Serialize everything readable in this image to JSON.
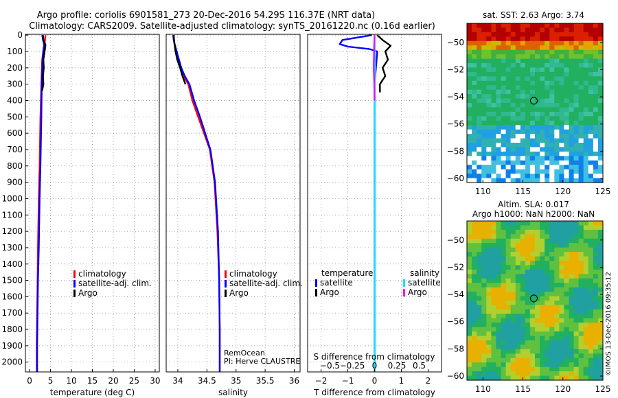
{
  "header": {
    "line1": "Argo profile: coriolis 6901581_273 20-Dec-2016 54.29S 116.37E (NRT data)",
    "line2": "Climatology: CARS2009. Satellite-adjusted climatology: synTS_20161220.nc (0.16d earlier)"
  },
  "credits": {
    "remocean": "RemOcean",
    "pi": "PI: Herve CLAUSTRE",
    "imos": "©IMOS 13-Dec-2016 09:35:12"
  },
  "colors": {
    "climatology": "#ff0000",
    "satellite": "#0000ff",
    "argo": "#000000",
    "sal_satellite": "#00e5ff",
    "sal_argo": "#ff00ff"
  },
  "chart_data": [
    {
      "type": "line",
      "id": "temperature",
      "xlabel": "temperature (deg C)",
      "xlim": [
        -1,
        31
      ],
      "xticks": [
        0,
        5,
        10,
        15,
        20,
        25,
        30
      ],
      "ylim": [
        2060,
        -5
      ],
      "yticks": [
        0,
        100,
        200,
        300,
        400,
        500,
        600,
        700,
        800,
        900,
        1000,
        1100,
        1200,
        1300,
        1400,
        1500,
        1600,
        1700,
        1800,
        1900,
        2000
      ],
      "legend": [
        "climatology",
        "satellite-adj. clim.",
        "Argo"
      ],
      "series": [
        {
          "name": "climatology",
          "color": "#ff0000",
          "x": [
            3.8,
            3.6,
            3.4,
            3.0,
            2.8,
            2.6,
            2.4,
            2.2,
            2.0,
            1.9,
            1.8,
            1.7,
            1.7
          ],
          "y": [
            0,
            50,
            80,
            150,
            300,
            500,
            800,
            1000,
            1300,
            1500,
            1700,
            1900,
            2060
          ]
        },
        {
          "name": "satellite-adj. clim.",
          "color": "#0000ff",
          "x": [
            3.0,
            3.2,
            3.5,
            3.3,
            3.1,
            2.9,
            2.8,
            2.6,
            2.4,
            2.2,
            2.0,
            1.9,
            1.8,
            1.8
          ],
          "y": [
            0,
            30,
            60,
            90,
            150,
            300,
            500,
            800,
            1000,
            1300,
            1500,
            1700,
            1900,
            2060
          ]
        },
        {
          "name": "Argo",
          "color": "#000000",
          "x": [
            3.2,
            3.3,
            3.8,
            3.6,
            3.3,
            3.4,
            3.2,
            3.3,
            3.0
          ],
          "y": [
            0,
            30,
            60,
            100,
            150,
            200,
            250,
            300,
            340
          ]
        }
      ]
    },
    {
      "type": "line",
      "id": "salinity",
      "xlabel": "salinity",
      "xlim": [
        33.8,
        36.1
      ],
      "xticks": [
        34,
        34.5,
        35,
        35.5,
        36
      ],
      "ylim": [
        2060,
        -5
      ],
      "legend": [
        "climatology",
        "satellite-adj. clim.",
        "Argo"
      ],
      "series": [
        {
          "name": "climatology",
          "color": "#ff0000",
          "x": [
            33.92,
            33.93,
            33.95,
            33.97,
            34.0,
            34.05,
            34.1,
            34.18,
            34.25,
            34.35,
            34.45,
            34.55,
            34.63,
            34.68,
            34.71,
            34.72,
            34.72
          ],
          "y": [
            0,
            30,
            60,
            100,
            150,
            200,
            250,
            300,
            400,
            500,
            600,
            700,
            900,
            1200,
            1500,
            1800,
            2060
          ]
        },
        {
          "name": "satellite-adj. clim.",
          "color": "#0000ff",
          "x": [
            33.92,
            33.93,
            33.95,
            33.98,
            34.02,
            34.06,
            34.12,
            34.2,
            34.28,
            34.38,
            34.47,
            34.56,
            34.64,
            34.69,
            34.71,
            34.72,
            34.72
          ],
          "y": [
            0,
            30,
            60,
            100,
            150,
            200,
            250,
            300,
            400,
            500,
            600,
            700,
            900,
            1200,
            1500,
            1800,
            2060
          ]
        },
        {
          "name": "Argo",
          "color": "#000000",
          "x": [
            33.93,
            33.94,
            33.96,
            33.99,
            34.04,
            34.08,
            34.13
          ],
          "y": [
            0,
            50,
            100,
            150,
            200,
            250,
            300
          ]
        }
      ]
    },
    {
      "type": "line",
      "id": "difference",
      "xlabel": "T difference from climatology",
      "xlabel_top": "S difference from climatology",
      "xlim": [
        -2.5,
        2.5
      ],
      "xticks": [
        -2,
        -1,
        0,
        1,
        2
      ],
      "xticks_top": [
        -0.5,
        -0.25,
        0,
        0.25,
        0.5
      ],
      "ylim": [
        2060,
        -5
      ],
      "legend_left_title": "temperature",
      "legend_right_title": "salinity",
      "legend_left": [
        "satellite",
        "Argo"
      ],
      "legend_right": [
        "satellite",
        "Argo"
      ],
      "series": [
        {
          "name": "T satellite",
          "color": "#0000ff",
          "x": [
            -0.1,
            -1.2,
            -1.3,
            -1.0,
            -0.2,
            0.1,
            0.05,
            0.0,
            0.0,
            0.0,
            0.0
          ],
          "y": [
            0,
            30,
            55,
            70,
            85,
            100,
            200,
            300,
            600,
            1000,
            2060
          ]
        },
        {
          "name": "T Argo",
          "color": "#000000",
          "x": [
            0.1,
            0.3,
            0.6,
            0.4,
            0.5,
            0.3,
            0.4,
            0.2,
            0.2
          ],
          "y": [
            0,
            30,
            65,
            100,
            150,
            200,
            250,
            300,
            350
          ]
        },
        {
          "name": "S satellite",
          "color": "#00e5ff",
          "x": [
            0.0,
            0.01,
            0.02,
            0.01,
            0.0,
            0.0,
            0.0
          ],
          "y": [
            0,
            100,
            200,
            300,
            500,
            1000,
            2060
          ]
        },
        {
          "name": "S Argo",
          "color": "#ff00ff",
          "x": [
            0.0,
            -0.02,
            -0.03,
            -0.01,
            0.0
          ],
          "y": [
            0,
            100,
            200,
            300,
            400
          ]
        }
      ]
    },
    {
      "type": "heatmap",
      "id": "sst_map",
      "title": "sat. SST: 2.63 Argo: 3.74",
      "xlim": [
        108,
        125
      ],
      "ylim": [
        -60.3,
        -48.6
      ],
      "xticks": [
        110,
        115,
        120,
        125
      ],
      "yticks": [
        -50,
        -52,
        -54,
        -56,
        -58,
        -60
      ],
      "marker": {
        "lon": 116.37,
        "lat": -54.29
      }
    },
    {
      "type": "heatmap",
      "id": "sla_map",
      "title": "Altim. SLA: 0.017",
      "subtitle": "Argo h1000: NaN h2000: NaN",
      "xlim": [
        108,
        125
      ],
      "ylim": [
        -60.3,
        -48.6
      ],
      "xticks": [
        110,
        115,
        120,
        125
      ],
      "yticks": [
        -50,
        -52,
        -54,
        -56,
        -58,
        -60
      ],
      "marker": {
        "lon": 116.37,
        "lat": -54.29
      }
    }
  ]
}
